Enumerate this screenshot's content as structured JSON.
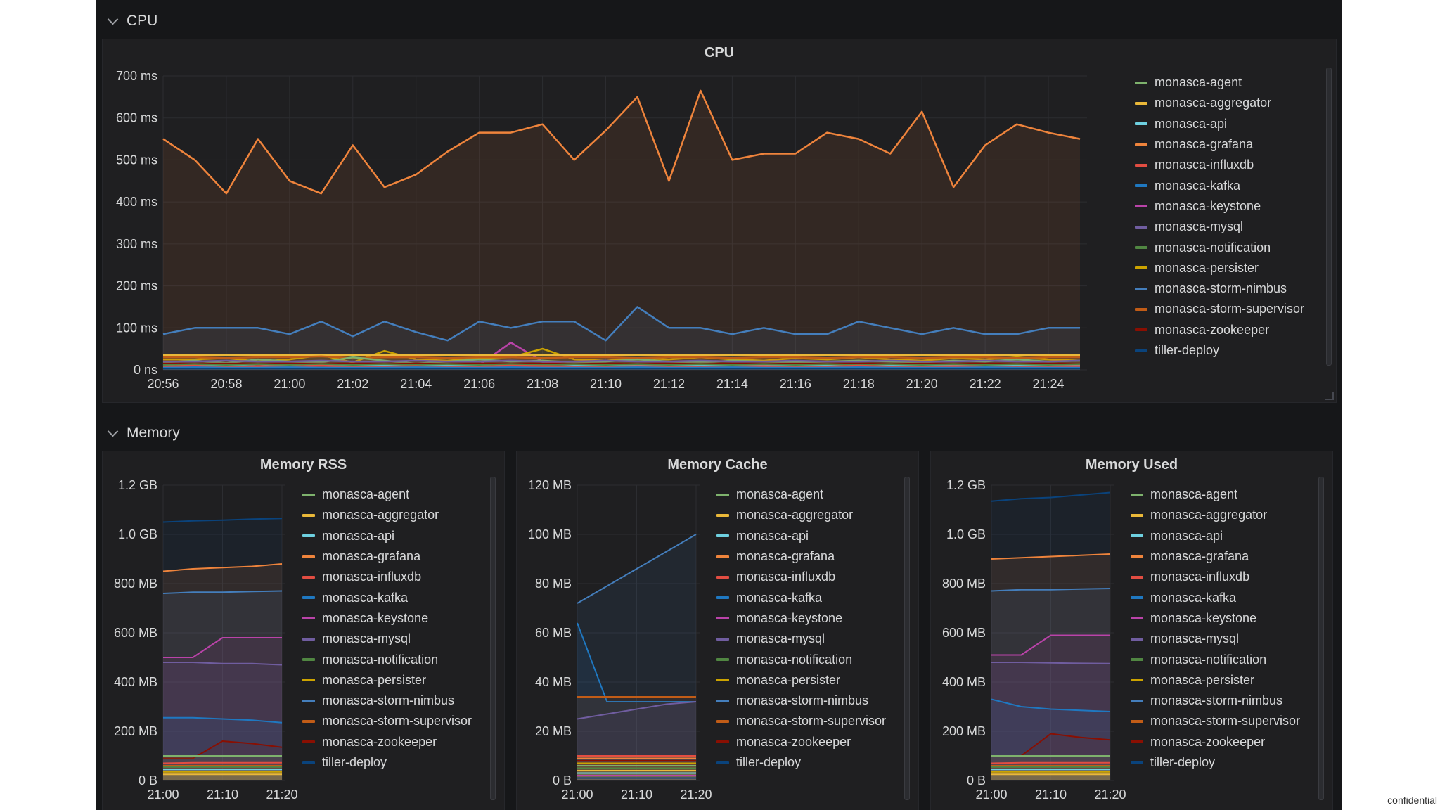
{
  "rows": {
    "cpu": "CPU",
    "memory": "Memory"
  },
  "legend": [
    {
      "name": "monasca-agent",
      "color": "#7eb26d"
    },
    {
      "name": "monasca-aggregator",
      "color": "#eab839"
    },
    {
      "name": "monasca-api",
      "color": "#6ed0e0"
    },
    {
      "name": "monasca-grafana",
      "color": "#ef843c"
    },
    {
      "name": "monasca-influxdb",
      "color": "#e24d42"
    },
    {
      "name": "monasca-kafka",
      "color": "#1f78c1"
    },
    {
      "name": "monasca-keystone",
      "color": "#ba43a9"
    },
    {
      "name": "monasca-mysql",
      "color": "#705da0"
    },
    {
      "name": "monasca-notification",
      "color": "#508642"
    },
    {
      "name": "monasca-persister",
      "color": "#cca300"
    },
    {
      "name": "monasca-storm-nimbus",
      "color": "#447ebc"
    },
    {
      "name": "monasca-storm-supervisor",
      "color": "#c15c17"
    },
    {
      "name": "monasca-zookeeper",
      "color": "#890f02"
    },
    {
      "name": "tiller-deploy",
      "color": "#0a437c"
    }
  ],
  "panels": {
    "cpu": {
      "title": "CPU"
    },
    "rss": {
      "title": "Memory RSS"
    },
    "cache": {
      "title": "Memory Cache"
    },
    "used": {
      "title": "Memory Used"
    }
  },
  "footer": "confidential",
  "chart_data": [
    {
      "id": "cpu",
      "type": "line",
      "title": "CPU",
      "x": [
        "20:56",
        "20:57",
        "20:58",
        "20:59",
        "21:00",
        "21:01",
        "21:02",
        "21:03",
        "21:04",
        "21:05",
        "21:06",
        "21:07",
        "21:08",
        "21:09",
        "21:10",
        "21:11",
        "21:12",
        "21:13",
        "21:14",
        "21:15",
        "21:16",
        "21:17",
        "21:18",
        "21:19",
        "21:20",
        "21:21",
        "21:22",
        "21:23",
        "21:24",
        "21:25"
      ],
      "xticks": [
        "20:56",
        "20:58",
        "21:00",
        "21:02",
        "21:04",
        "21:06",
        "21:08",
        "21:10",
        "21:12",
        "21:14",
        "21:16",
        "21:18",
        "21:20",
        "21:22",
        "21:24"
      ],
      "yticks": [
        "0 ns",
        "100 ms",
        "200 ms",
        "300 ms",
        "400 ms",
        "500 ms",
        "600 ms",
        "700 ms"
      ],
      "ylim": [
        0,
        700
      ],
      "grid": true,
      "legend": "right",
      "series": [
        {
          "name": "monasca-agent",
          "values": [
            18,
            22,
            16,
            25,
            20,
            18,
            30,
            22,
            15,
            20,
            25,
            20,
            22,
            18,
            20,
            25,
            20,
            18,
            22,
            20,
            18,
            20,
            22,
            20,
            18,
            22,
            20,
            25,
            20,
            22
          ]
        },
        {
          "name": "monasca-aggregator",
          "values": [
            35,
            35,
            35,
            35,
            35,
            35,
            35,
            35,
            35,
            35,
            35,
            35,
            35,
            35,
            35,
            35,
            35,
            35,
            35,
            35,
            35,
            35,
            35,
            35,
            35,
            35,
            35,
            35,
            35,
            35
          ]
        },
        {
          "name": "monasca-api",
          "values": [
            10,
            12,
            10,
            14,
            10,
            12,
            10,
            12,
            10,
            10,
            12,
            10,
            15,
            12,
            10,
            12,
            10,
            12,
            10,
            10,
            12,
            10,
            12,
            10,
            10,
            12,
            10,
            12,
            10,
            10
          ]
        },
        {
          "name": "monasca-grafana",
          "values": [
            550,
            500,
            420,
            550,
            450,
            420,
            535,
            435,
            465,
            520,
            565,
            565,
            585,
            500,
            570,
            650,
            450,
            665,
            500,
            515,
            515,
            565,
            550,
            515,
            615,
            435,
            535,
            585,
            565,
            550
          ]
        },
        {
          "name": "monasca-influxdb",
          "values": [
            8,
            10,
            6,
            9,
            8,
            10,
            7,
            8,
            9,
            6,
            8,
            10,
            9,
            8,
            7,
            9,
            8,
            6,
            8,
            9,
            7,
            8,
            10,
            8,
            7,
            9,
            8,
            6,
            8,
            9
          ]
        },
        {
          "name": "monasca-kafka",
          "values": [
            5,
            6,
            5,
            5,
            6,
            5,
            5,
            5,
            6,
            5,
            5,
            6,
            5,
            5,
            5,
            6,
            5,
            5,
            6,
            5,
            5,
            5,
            6,
            5,
            5,
            5,
            6,
            5,
            5,
            5
          ]
        },
        {
          "name": "monasca-keystone",
          "values": [
            10,
            12,
            10,
            14,
            10,
            12,
            12,
            10,
            12,
            10,
            12,
            65,
            20,
            12,
            10,
            12,
            10,
            12,
            10,
            10,
            12,
            10,
            12,
            10,
            10,
            12,
            10,
            12,
            10,
            10
          ]
        },
        {
          "name": "monasca-mysql",
          "values": [
            20,
            20,
            22,
            20,
            20,
            22,
            20,
            20,
            22,
            20,
            20,
            22,
            20,
            20,
            22,
            20,
            20,
            22,
            20,
            20,
            22,
            20,
            20,
            22,
            20,
            20,
            22,
            20,
            20,
            22
          ]
        },
        {
          "name": "monasca-notification",
          "values": [
            12,
            14,
            12,
            14,
            12,
            14,
            12,
            14,
            12,
            14,
            12,
            14,
            12,
            14,
            12,
            14,
            12,
            14,
            12,
            14,
            12,
            14,
            12,
            14,
            12,
            14,
            12,
            14,
            12,
            14
          ]
        },
        {
          "name": "monasca-persister",
          "values": [
            25,
            25,
            28,
            20,
            25,
            35,
            18,
            45,
            25,
            22,
            28,
            30,
            50,
            25,
            22,
            28,
            25,
            30,
            25,
            22,
            28,
            25,
            30,
            25,
            22,
            28,
            25,
            30,
            25,
            22
          ]
        },
        {
          "name": "monasca-storm-nimbus",
          "values": [
            85,
            100,
            100,
            100,
            85,
            115,
            80,
            115,
            90,
            70,
            115,
            100,
            115,
            115,
            70,
            150,
            100,
            100,
            85,
            100,
            85,
            85,
            115,
            100,
            85,
            100,
            85,
            85,
            100,
            100
          ]
        },
        {
          "name": "monasca-storm-supervisor",
          "values": [
            30,
            30,
            28,
            30,
            30,
            32,
            28,
            30,
            30,
            28,
            30,
            30,
            28,
            30,
            30,
            28,
            30,
            30,
            28,
            30,
            30,
            28,
            30,
            30,
            28,
            30,
            30,
            28,
            30,
            30
          ]
        },
        {
          "name": "monasca-zookeeper",
          "values": [
            15,
            15,
            15,
            15,
            15,
            15,
            15,
            15,
            15,
            15,
            15,
            15,
            15,
            15,
            15,
            15,
            15,
            15,
            15,
            15,
            15,
            15,
            15,
            15,
            15,
            15,
            15,
            15,
            15,
            15
          ]
        },
        {
          "name": "tiller-deploy",
          "values": [
            3,
            3,
            3,
            3,
            3,
            3,
            3,
            3,
            3,
            3,
            3,
            3,
            3,
            3,
            3,
            3,
            3,
            3,
            3,
            3,
            3,
            3,
            3,
            3,
            3,
            3,
            3,
            3,
            3,
            3
          ]
        }
      ]
    },
    {
      "id": "rss",
      "type": "area",
      "title": "Memory RSS",
      "x": [
        "21:00",
        "21:05",
        "21:10",
        "21:15",
        "21:20"
      ],
      "xticks": [
        "21:00",
        "21:10",
        "21:20"
      ],
      "yticks": [
        "0 B",
        "200 MB",
        "400 MB",
        "600 MB",
        "800 MB",
        "1.0 GB",
        "1.2 GB"
      ],
      "ylim": [
        0,
        1200
      ],
      "grid": true,
      "legend": "right",
      "series": [
        {
          "name": "monasca-agent",
          "values": [
            100,
            100,
            100,
            100,
            100
          ]
        },
        {
          "name": "monasca-aggregator",
          "values": [
            25,
            25,
            25,
            25,
            25
          ]
        },
        {
          "name": "monasca-api",
          "values": [
            45,
            45,
            45,
            45,
            45
          ]
        },
        {
          "name": "monasca-grafana",
          "values": [
            850,
            860,
            865,
            870,
            880
          ]
        },
        {
          "name": "monasca-influxdb",
          "values": [
            70,
            72,
            72,
            72,
            72
          ]
        },
        {
          "name": "monasca-kafka",
          "values": [
            255,
            255,
            250,
            245,
            235
          ]
        },
        {
          "name": "monasca-keystone",
          "values": [
            500,
            500,
            580,
            580,
            580
          ]
        },
        {
          "name": "monasca-mysql",
          "values": [
            480,
            480,
            475,
            475,
            470
          ]
        },
        {
          "name": "monasca-notification",
          "values": [
            55,
            55,
            55,
            55,
            55
          ]
        },
        {
          "name": "monasca-persister",
          "values": [
            35,
            35,
            35,
            35,
            35
          ]
        },
        {
          "name": "monasca-storm-nimbus",
          "values": [
            760,
            765,
            765,
            768,
            770
          ]
        },
        {
          "name": "monasca-storm-supervisor",
          "values": [
            60,
            60,
            60,
            60,
            60
          ]
        },
        {
          "name": "monasca-zookeeper",
          "values": [
            90,
            90,
            160,
            150,
            135
          ]
        },
        {
          "name": "tiller-deploy",
          "values": [
            1050,
            1055,
            1058,
            1062,
            1065
          ]
        }
      ]
    },
    {
      "id": "cache",
      "type": "area",
      "title": "Memory Cache",
      "x": [
        "21:00",
        "21:05",
        "21:10",
        "21:15",
        "21:20"
      ],
      "xticks": [
        "21:00",
        "21:10",
        "21:20"
      ],
      "yticks": [
        "0 B",
        "20 MB",
        "40 MB",
        "60 MB",
        "80 MB",
        "100 MB",
        "120 MB"
      ],
      "ylim": [
        0,
        120
      ],
      "grid": true,
      "legend": "right",
      "series": [
        {
          "name": "monasca-agent",
          "values": [
            6,
            6,
            6,
            6,
            6
          ]
        },
        {
          "name": "monasca-aggregator",
          "values": [
            4,
            4,
            4,
            4,
            4
          ]
        },
        {
          "name": "monasca-api",
          "values": [
            3,
            3,
            3,
            3,
            3
          ]
        },
        {
          "name": "monasca-grafana",
          "values": [
            9,
            9,
            9,
            9,
            9
          ]
        },
        {
          "name": "monasca-influxdb",
          "values": [
            10,
            10,
            10,
            10,
            10
          ]
        },
        {
          "name": "monasca-kafka",
          "values": [
            64,
            32,
            32,
            32,
            32
          ]
        },
        {
          "name": "monasca-keystone",
          "values": [
            2,
            2,
            2,
            2,
            2
          ]
        },
        {
          "name": "monasca-mysql",
          "values": [
            25,
            27,
            29,
            31,
            32
          ]
        },
        {
          "name": "monasca-notification",
          "values": [
            5,
            5,
            5,
            5,
            5
          ]
        },
        {
          "name": "monasca-persister",
          "values": [
            7,
            7,
            7,
            7,
            7
          ]
        },
        {
          "name": "monasca-storm-nimbus",
          "values": [
            72,
            79,
            86,
            93,
            100
          ]
        },
        {
          "name": "monasca-storm-supervisor",
          "values": [
            34,
            34,
            34,
            34,
            34
          ]
        },
        {
          "name": "monasca-zookeeper",
          "values": [
            8,
            8,
            8,
            8,
            8
          ]
        },
        {
          "name": "tiller-deploy",
          "values": [
            1,
            1,
            1,
            1,
            1
          ]
        }
      ]
    },
    {
      "id": "used",
      "type": "area",
      "title": "Memory Used",
      "x": [
        "21:00",
        "21:05",
        "21:10",
        "21:15",
        "21:20"
      ],
      "xticks": [
        "21:00",
        "21:10",
        "21:20"
      ],
      "yticks": [
        "0 B",
        "200 MB",
        "400 MB",
        "600 MB",
        "800 MB",
        "1.0 GB",
        "1.2 GB"
      ],
      "ylim": [
        0,
        1200
      ],
      "grid": true,
      "legend": "right",
      "series": [
        {
          "name": "monasca-agent",
          "values": [
            100,
            100,
            100,
            100,
            100
          ]
        },
        {
          "name": "monasca-aggregator",
          "values": [
            25,
            25,
            25,
            25,
            25
          ]
        },
        {
          "name": "monasca-api",
          "values": [
            45,
            45,
            45,
            45,
            45
          ]
        },
        {
          "name": "monasca-grafana",
          "values": [
            900,
            905,
            910,
            915,
            920
          ]
        },
        {
          "name": "monasca-influxdb",
          "values": [
            70,
            72,
            72,
            72,
            72
          ]
        },
        {
          "name": "monasca-kafka",
          "values": [
            330,
            300,
            290,
            285,
            280
          ]
        },
        {
          "name": "monasca-keystone",
          "values": [
            510,
            510,
            590,
            590,
            590
          ]
        },
        {
          "name": "monasca-mysql",
          "values": [
            480,
            480,
            478,
            476,
            475
          ]
        },
        {
          "name": "monasca-notification",
          "values": [
            55,
            55,
            55,
            55,
            55
          ]
        },
        {
          "name": "monasca-persister",
          "values": [
            35,
            35,
            35,
            35,
            35
          ]
        },
        {
          "name": "monasca-storm-nimbus",
          "values": [
            770,
            775,
            775,
            778,
            780
          ]
        },
        {
          "name": "monasca-storm-supervisor",
          "values": [
            60,
            60,
            60,
            60,
            60
          ]
        },
        {
          "name": "monasca-zookeeper",
          "values": [
            100,
            100,
            190,
            175,
            165
          ]
        },
        {
          "name": "tiller-deploy",
          "values": [
            1135,
            1145,
            1150,
            1160,
            1170
          ]
        }
      ]
    }
  ]
}
